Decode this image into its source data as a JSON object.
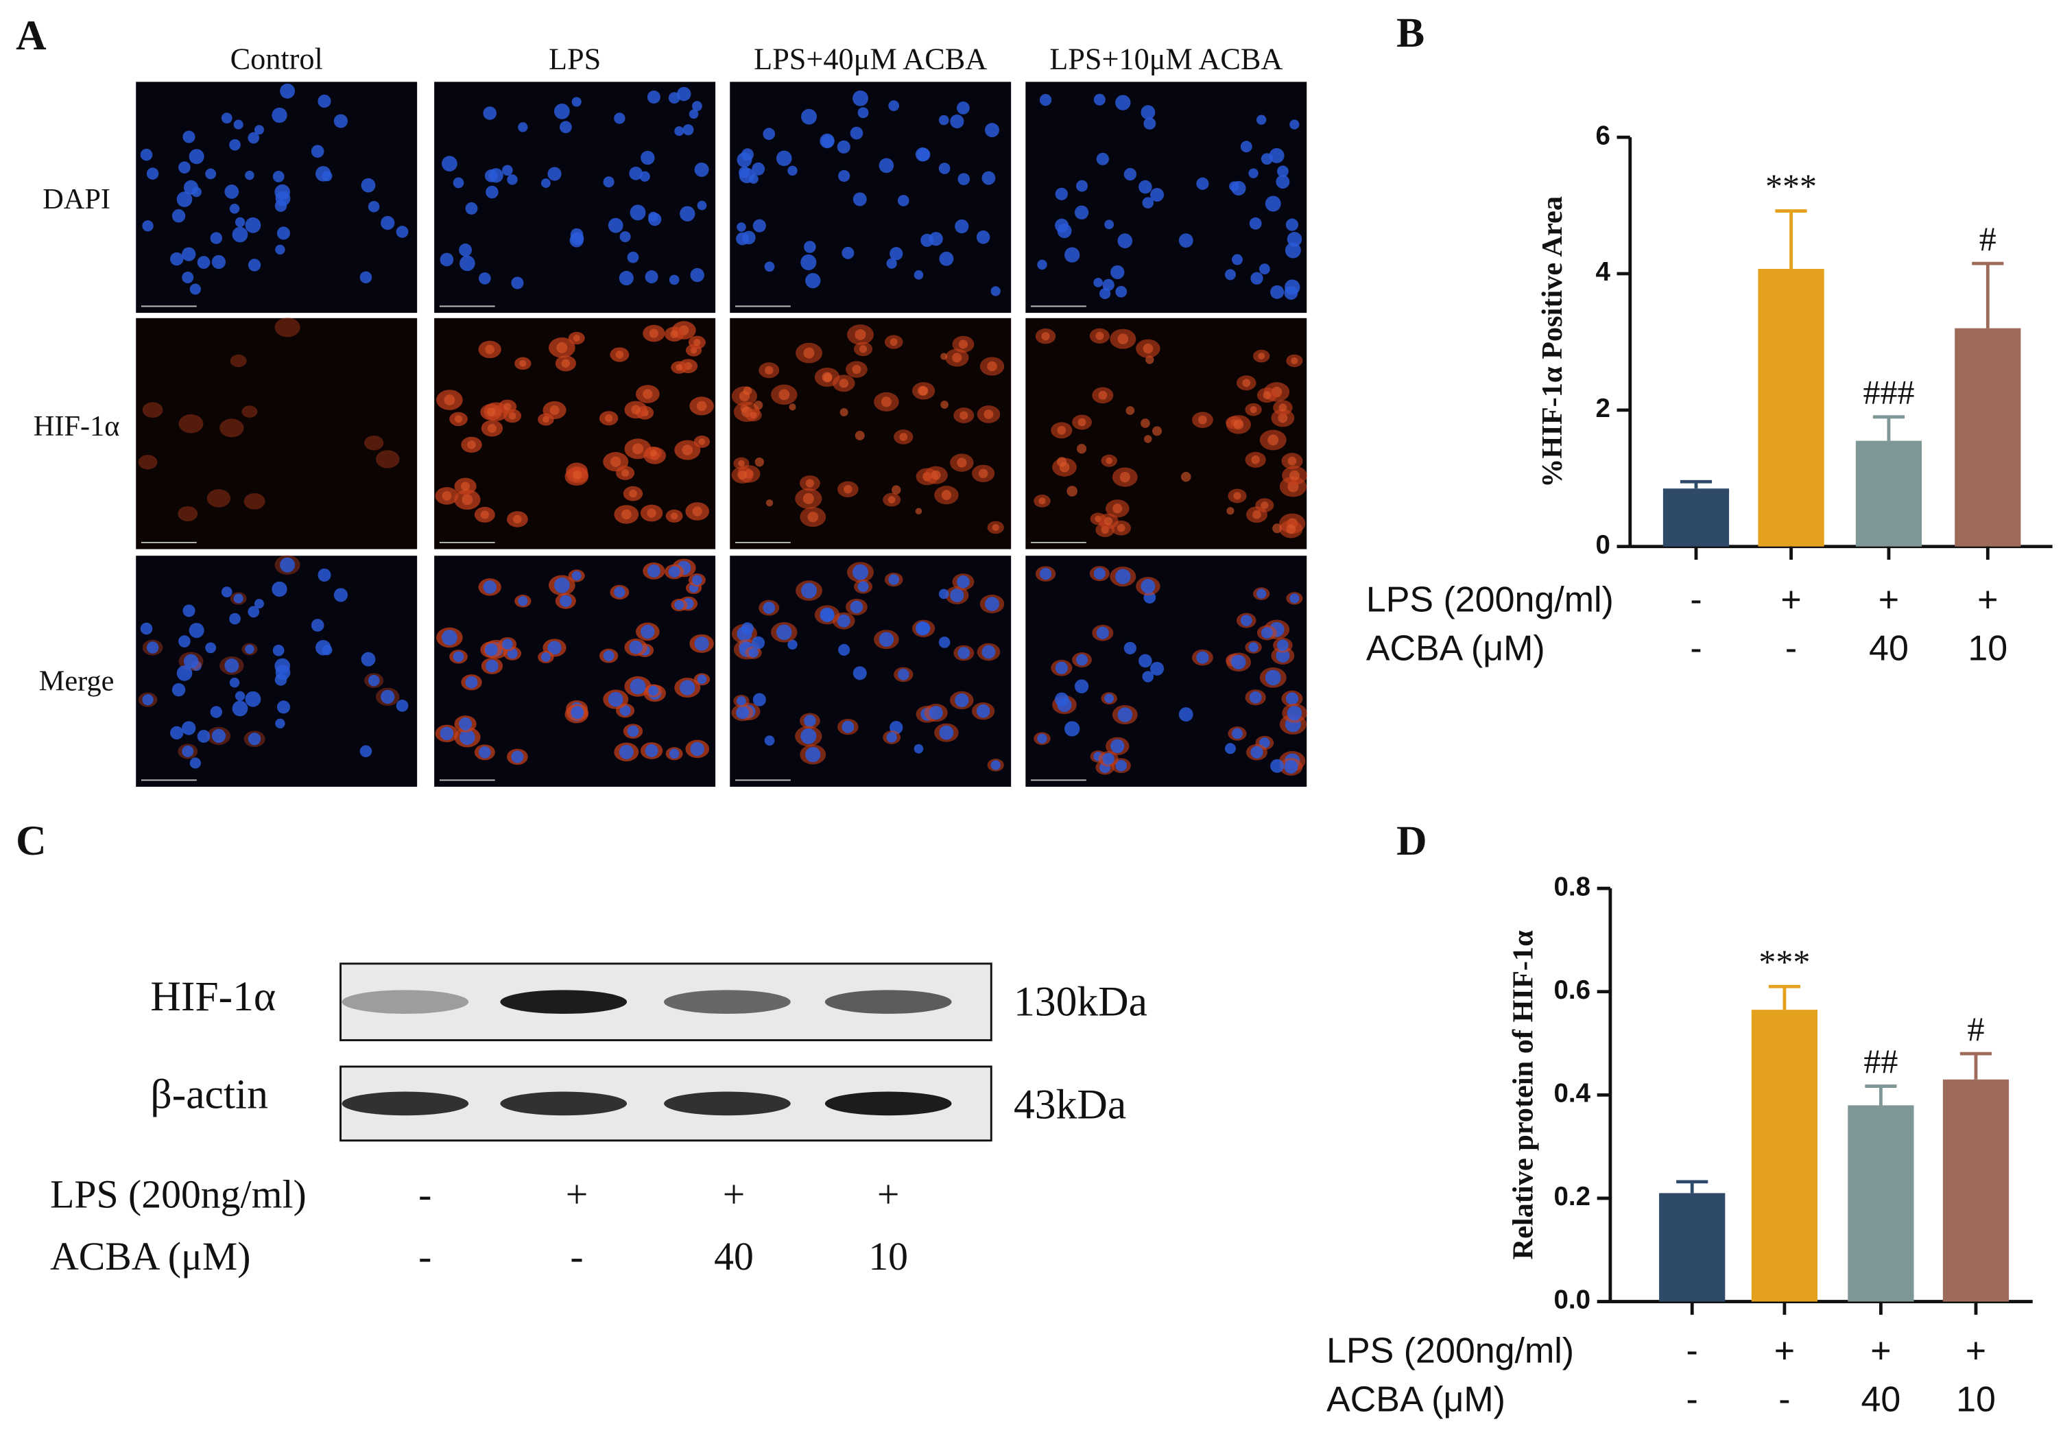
{
  "panel_a": {
    "label": "A",
    "columns": [
      "Control",
      "LPS",
      "LPS+40μM ACBA",
      "LPS+10μM ACBA"
    ],
    "rows": [
      "DAPI",
      "HIF-1α",
      "Merge"
    ]
  },
  "panel_c": {
    "label": "C",
    "bands": [
      {
        "protein": "HIF-1α",
        "size": "130kDa"
      },
      {
        "protein": "β-actin",
        "size": "43kDa"
      }
    ],
    "conditions": [
      {
        "label": "LPS (200ng/ml)",
        "values": [
          "-",
          "+",
          "+",
          "+"
        ]
      },
      {
        "label": "ACBA (μM)",
        "values": [
          "-",
          "-",
          "40",
          "10"
        ]
      }
    ]
  },
  "chart_data": [
    {
      "type": "bar",
      "panel_label": "B",
      "y_label": "%HIF-1α Positive Area",
      "values": [
        0.85,
        4.07,
        1.55,
        3.2
      ],
      "errors": [
        0.1,
        0.85,
        0.35,
        0.95
      ],
      "annotations": [
        null,
        "***",
        "###",
        "#"
      ],
      "colors": [
        "#2f4a68",
        "#e4a11d",
        "#7f9696",
        "#9e6a5a"
      ],
      "ylim": [
        0,
        6
      ],
      "yticks": [
        0,
        2,
        4,
        6
      ],
      "conditions": [
        {
          "label": "LPS (200ng/ml)",
          "values": [
            "-",
            "+",
            "+",
            "+"
          ]
        },
        {
          "label": "ACBA (μM)",
          "values": [
            "-",
            "-",
            "40",
            "10"
          ]
        }
      ]
    },
    {
      "type": "bar",
      "panel_label": "D",
      "y_label": "Relative protein of HIF-1α",
      "values": [
        0.21,
        0.565,
        0.38,
        0.43
      ],
      "errors": [
        0.022,
        0.045,
        0.037,
        0.05
      ],
      "annotations": [
        null,
        "***",
        "##",
        "#"
      ],
      "colors": [
        "#2f4a68",
        "#e4a11d",
        "#7f9696",
        "#9e6a5a"
      ],
      "ylim": [
        0,
        0.8
      ],
      "yticks": [
        {
          "value": 0,
          "label": "0.0"
        },
        0.2,
        0.4,
        0.6,
        0.8
      ],
      "conditions": [
        {
          "label": "LPS (200ng/ml)",
          "values": [
            "-",
            "+",
            "+",
            "+"
          ]
        },
        {
          "label": "ACBA (μM)",
          "values": [
            "-",
            "-",
            "40",
            "10"
          ]
        }
      ]
    }
  ]
}
